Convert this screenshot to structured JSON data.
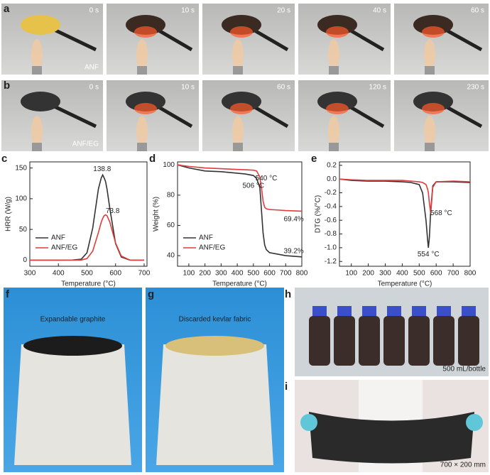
{
  "figure": {
    "rows": [
      {
        "label": "a",
        "times": [
          "0 s",
          "10 s",
          "20 s",
          "40 s",
          "60 s"
        ],
        "sample": "ANF"
      },
      {
        "label": "b",
        "times": [
          "0 s",
          "10 s",
          "60 s",
          "120 s",
          "230 s"
        ],
        "sample": "ANF/EG"
      }
    ],
    "photos": [
      {
        "label": "f",
        "caption": "Expandable graphite"
      },
      {
        "label": "g",
        "caption": "Discarded kevlar fabric"
      },
      {
        "label": "h",
        "caption": "500 mL/bottle"
      },
      {
        "label": "i",
        "caption": "700 × 200 mm"
      }
    ]
  },
  "chart_data": [
    {
      "type": "line",
      "panel": "c",
      "xlabel": "Temperature (°C)",
      "ylabel": "HRR (W/g)",
      "x": [
        300,
        350,
        400,
        450,
        480,
        500,
        520,
        540,
        550,
        555,
        560,
        565,
        570,
        580,
        600,
        620,
        650,
        700
      ],
      "series": [
        {
          "name": "ANF",
          "color": "#333333",
          "values": [
            0,
            0,
            0,
            0.2,
            1.5,
            12,
            52,
            116,
            134,
            138.8,
            134,
            128,
            116,
            84,
            27,
            5,
            0,
            0
          ]
        },
        {
          "name": "ANF/EG",
          "color": "#e03c3c",
          "values": [
            0,
            0,
            0,
            0,
            0.2,
            2.5,
            14.6,
            45,
            62,
            68,
            72.3,
            73.8,
            72.3,
            62,
            28,
            6.6,
            0.2,
            0
          ]
        }
      ],
      "annotations": [
        {
          "text": "138.8",
          "color": "#333333"
        },
        {
          "text": "73.8",
          "color": "#e03c3c"
        }
      ],
      "xlim": [
        300,
        710
      ],
      "xticks": [
        300,
        400,
        500,
        600,
        700
      ],
      "ylim": [
        -10,
        160
      ],
      "yticks": [
        0,
        50,
        100,
        150
      ],
      "legend": "lower left"
    },
    {
      "type": "line",
      "panel": "d",
      "xlabel": "Temperature (°C)",
      "ylabel": "Weight (%)",
      "x": [
        30,
        100,
        200,
        300,
        400,
        450,
        500,
        520,
        540,
        550,
        560,
        570,
        580,
        600,
        650,
        700,
        800
      ],
      "series": [
        {
          "name": "ANF",
          "color": "#333333",
          "values": [
            100,
            98,
            96,
            95.5,
            94.5,
            94,
            93,
            91,
            85,
            70,
            55,
            47,
            44,
            42,
            41,
            40,
            39.2
          ]
        },
        {
          "name": "ANF/EG",
          "color": "#e03c3c",
          "values": [
            100,
            99,
            98,
            97.5,
            97,
            96.8,
            96.5,
            96,
            92,
            85,
            76,
            72,
            71,
            70.5,
            70.2,
            69.8,
            69.4
          ]
        }
      ],
      "annotations": [
        {
          "text": "506 °C",
          "color": "#333333"
        },
        {
          "text": "540 °C",
          "color": "#e03c3c"
        },
        {
          "text": "69.4%",
          "color": "#e03c3c"
        },
        {
          "text": "39.2%",
          "color": "#333333"
        }
      ],
      "xlim": [
        30,
        800
      ],
      "xticks": [
        100,
        200,
        300,
        400,
        500,
        600,
        700,
        800
      ],
      "ylim": [
        33,
        102
      ],
      "yticks": [
        40,
        60,
        80,
        100
      ],
      "legend": "lower left"
    },
    {
      "type": "line",
      "panel": "e",
      "xlabel": "Temperature (°C)",
      "ylabel": "DTG (%/°C)",
      "x": [
        30,
        100,
        200,
        300,
        400,
        450,
        500,
        520,
        540,
        550,
        554,
        560,
        568,
        580,
        600,
        700,
        800
      ],
      "series": [
        {
          "name": "ANF",
          "color": "#333333",
          "values": [
            0,
            -0.02,
            -0.03,
            -0.03,
            -0.04,
            -0.05,
            -0.08,
            -0.2,
            -0.6,
            -0.9,
            -1.0,
            -0.85,
            -0.45,
            -0.1,
            -0.04,
            -0.04,
            -0.05
          ]
        },
        {
          "name": "ANF/EG",
          "color": "#e03c3c",
          "values": [
            0,
            -0.01,
            -0.02,
            -0.02,
            -0.02,
            -0.03,
            -0.04,
            -0.05,
            -0.08,
            -0.15,
            -0.2,
            -0.35,
            -0.5,
            -0.12,
            -0.04,
            -0.03,
            -0.04
          ]
        }
      ],
      "annotations": [
        {
          "text": "554 °C",
          "color": "#333333"
        },
        {
          "text": "568 °C",
          "color": "#e03c3c"
        }
      ],
      "xlim": [
        30,
        800
      ],
      "xticks": [
        100,
        200,
        300,
        400,
        500,
        600,
        700,
        800
      ],
      "ylim": [
        -1.27,
        0.25
      ],
      "yticks": [
        0.2,
        {
          "value": 0,
          "label": "0.0"
        },
        -0.2,
        -0.4,
        -0.6,
        -0.8,
        {
          "value": -1,
          "label": "-1.0"
        },
        -1.2
      ]
    }
  ]
}
